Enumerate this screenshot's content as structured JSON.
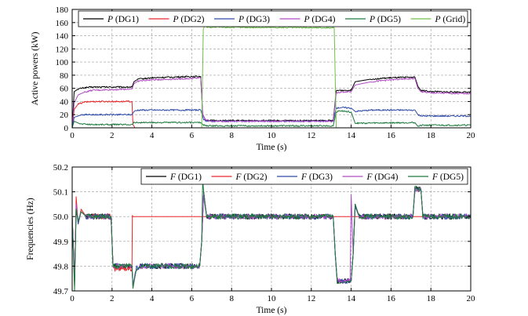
{
  "chart_data": [
    {
      "type": "line",
      "xlabel": "Time (s)",
      "ylabel": "Active powers (kW)",
      "xlim": [
        0,
        20
      ],
      "ylim": [
        0,
        180
      ],
      "xticks": [
        "0",
        "2",
        "4",
        "6",
        "8",
        "10",
        "12",
        "14",
        "16",
        "18",
        "20"
      ],
      "yticks": [
        "0",
        "20",
        "40",
        "60",
        "80",
        "100",
        "120",
        "140",
        "160",
        "180"
      ],
      "grid": "dashed",
      "legend_position": "top, single row",
      "series": [
        {
          "name": "P (DG1)",
          "legend_symbol": "P",
          "legend_suffix": " (DG1)",
          "color": "#000000",
          "x": [
            0,
            0.1,
            0.3,
            0.6,
            1.0,
            2.0,
            3.0,
            3.1,
            3.3,
            4.0,
            5.0,
            6.0,
            6.45,
            6.55,
            6.7,
            7.0,
            13.1,
            13.25,
            13.4,
            13.8,
            14.0,
            14.2,
            15,
            16,
            17.2,
            17.35,
            17.5,
            18,
            20
          ],
          "y": [
            0,
            55,
            59,
            61,
            62,
            62,
            62,
            70,
            74,
            76,
            77,
            78,
            78,
            20,
            12,
            11,
            11,
            56,
            57,
            57,
            57,
            70,
            74,
            76,
            77,
            63,
            57,
            55,
            54
          ]
        },
        {
          "name": "P (DG2)",
          "legend_symbol": "P",
          "legend_suffix": " (DG2)",
          "color": "#e8262a",
          "x": [
            0,
            0.1,
            0.3,
            0.6,
            1.0,
            2.0,
            3.0,
            3.05,
            3.15,
            20
          ],
          "y": [
            0,
            28,
            36,
            39,
            40,
            40,
            40,
            5,
            0,
            0
          ]
        },
        {
          "name": "P (DG3)",
          "legend_symbol": "P",
          "legend_suffix": " (DG3)",
          "color": "#2e49a8",
          "x": [
            0,
            0.1,
            0.5,
            1.0,
            2.0,
            3.0,
            3.1,
            3.3,
            5.0,
            6.45,
            6.6,
            6.8,
            13.1,
            13.25,
            13.5,
            14.0,
            14.2,
            15,
            17.2,
            17.35,
            17.5,
            18,
            20
          ],
          "y": [
            0,
            16,
            20,
            20,
            20,
            20,
            25,
            27,
            27,
            27,
            12,
            10,
            10,
            30,
            31,
            30,
            25,
            27,
            27,
            20,
            18,
            18,
            18
          ]
        },
        {
          "name": "P (DG4)",
          "legend_symbol": "P",
          "legend_suffix": " (DG4)",
          "color": "#b04ac4",
          "x": [
            0,
            0.1,
            0.3,
            0.6,
            1.0,
            2.0,
            3.0,
            3.1,
            3.3,
            4.0,
            5.0,
            6.0,
            6.45,
            6.55,
            6.7,
            7.0,
            13.1,
            13.25,
            13.4,
            13.8,
            14.0,
            14.2,
            15,
            16,
            17.2,
            17.35,
            17.5,
            18,
            20
          ],
          "y": [
            0,
            38,
            50,
            54,
            57,
            58,
            59,
            67,
            71,
            73,
            74,
            75,
            76,
            20,
            12,
            10,
            10,
            52,
            54,
            55,
            55,
            65,
            70,
            73,
            75,
            60,
            55,
            53,
            52
          ]
        },
        {
          "name": "P (DG5)",
          "legend_symbol": "P",
          "legend_suffix": " (DG5)",
          "color": "#1d7a3e",
          "x": [
            0,
            0.1,
            0.4,
            1.0,
            3.0,
            3.1,
            3.3,
            6.45,
            6.6,
            6.8,
            13.1,
            13.25,
            13.4,
            14.0,
            14.2,
            17.2,
            17.35,
            17.5,
            20
          ],
          "y": [
            0,
            10,
            6,
            5,
            5,
            8,
            8,
            8,
            4,
            3,
            3,
            24,
            26,
            24,
            7,
            8,
            2,
            4,
            4
          ]
        },
        {
          "name": "P (Grid)",
          "legend_symbol": "P",
          "legend_suffix": " (Grid)",
          "color": "#6cc04a",
          "x": [
            0,
            6.5,
            6.58,
            6.65,
            6.8,
            13.15,
            13.25,
            20
          ],
          "y": [
            0,
            0,
            150,
            155,
            153,
            152,
            0,
            0
          ]
        }
      ]
    },
    {
      "type": "line",
      "xlabel": "Time (s)",
      "ylabel": "Frequencies (Hz)",
      "xlim": [
        0,
        20
      ],
      "ylim": [
        49.7,
        50.2
      ],
      "xticks": [
        "0",
        "2",
        "4",
        "6",
        "8",
        "10",
        "12",
        "14",
        "16",
        "18",
        "20"
      ],
      "yticks": [
        "49.7",
        "49.8",
        "49.9",
        "50.0",
        "50.1",
        "50.2"
      ],
      "grid": "dashed",
      "legend_position": "top, single row",
      "series": [
        {
          "name": "F (DG1)",
          "legend_symbol": "F",
          "legend_suffix": " (DG1)",
          "color": "#000000",
          "x": [
            0,
            0.12,
            0.2,
            0.3,
            0.45,
            0.7,
            1.0,
            1.95,
            2.05,
            2.15,
            3.0,
            3.05,
            3.2,
            3.4,
            6.4,
            6.5,
            6.6,
            6.75,
            13.1,
            13.2,
            13.3,
            14.0,
            14.1,
            14.2,
            14.4,
            17.1,
            17.2,
            17.5,
            17.6,
            20
          ],
          "y": [
            50.0,
            49.75,
            50.03,
            49.98,
            50.02,
            50.0,
            50.0,
            50.0,
            49.8,
            49.8,
            49.8,
            49.72,
            49.78,
            49.8,
            49.8,
            49.9,
            50.1,
            50.0,
            50.0,
            49.85,
            49.74,
            49.74,
            49.85,
            50.05,
            50.0,
            50.0,
            50.11,
            50.11,
            50.0,
            50.0
          ]
        },
        {
          "name": "F (DG2)",
          "legend_symbol": "F",
          "legend_suffix": " (DG2)",
          "color": "#e8262a",
          "x": [
            0,
            0.12,
            0.2,
            0.3,
            0.45,
            0.7,
            1.0,
            1.95,
            2.05,
            2.15,
            3.0,
            3.02,
            20
          ],
          "y": [
            50.0,
            49.72,
            50.08,
            49.97,
            50.03,
            50.0,
            50.0,
            50.0,
            49.8,
            49.79,
            49.79,
            50.0,
            50.0
          ]
        },
        {
          "name": "F (DG3)",
          "legend_symbol": "F",
          "legend_suffix": " (DG3)",
          "color": "#2e49a8",
          "x": [
            0,
            0.12,
            0.2,
            0.3,
            0.45,
            0.7,
            1.0,
            1.95,
            2.05,
            2.15,
            3.0,
            3.05,
            3.2,
            3.4,
            6.4,
            6.5,
            6.6,
            6.75,
            13.1,
            13.2,
            13.3,
            14.0,
            14.1,
            14.2,
            14.4,
            17.1,
            17.2,
            17.5,
            17.6,
            20
          ],
          "y": [
            50.0,
            49.74,
            50.04,
            49.97,
            50.02,
            50.0,
            50.0,
            50.0,
            49.8,
            49.81,
            49.8,
            49.72,
            49.79,
            49.8,
            49.8,
            49.9,
            50.1,
            50.0,
            50.0,
            49.85,
            49.74,
            49.74,
            49.85,
            50.04,
            50.0,
            50.0,
            50.11,
            50.11,
            50.0,
            50.0
          ]
        },
        {
          "name": "F (DG4)",
          "legend_symbol": "F",
          "legend_suffix": " (DG4)",
          "color": "#b04ac4",
          "x": [
            0,
            0.12,
            0.2,
            0.3,
            0.45,
            0.7,
            1.0,
            1.95,
            2.05,
            2.15,
            3.0,
            3.05,
            3.2,
            3.4,
            6.4,
            6.5,
            6.6,
            6.75,
            13.1,
            13.2,
            13.3,
            13.95,
            14.0,
            14.1,
            14.2,
            14.4,
            17.1,
            17.2,
            17.5,
            17.6,
            20
          ],
          "y": [
            50.0,
            49.73,
            50.05,
            49.98,
            50.02,
            50.0,
            50.0,
            50.0,
            49.8,
            49.8,
            49.8,
            49.72,
            49.78,
            49.8,
            49.8,
            49.9,
            50.1,
            50.0,
            50.0,
            49.85,
            49.74,
            49.74,
            50.09,
            49.85,
            50.05,
            50.0,
            50.0,
            50.11,
            50.11,
            50.0,
            50.0
          ]
        },
        {
          "name": "F (DG5)",
          "legend_symbol": "F",
          "legend_suffix": " (DG5)",
          "color": "#1d7a3e",
          "x": [
            0,
            0.12,
            0.2,
            0.3,
            0.45,
            0.7,
            1.0,
            1.95,
            2.05,
            2.15,
            3.0,
            3.05,
            3.2,
            3.4,
            6.4,
            6.5,
            6.55,
            6.65,
            6.75,
            13.1,
            13.2,
            13.3,
            14.0,
            14.1,
            14.2,
            14.4,
            17.1,
            17.2,
            17.5,
            17.6,
            20
          ],
          "y": [
            50.0,
            49.7,
            50.03,
            49.98,
            50.02,
            50.0,
            50.0,
            50.0,
            49.8,
            49.8,
            49.8,
            49.71,
            49.78,
            49.8,
            49.8,
            49.9,
            50.15,
            50.05,
            50.0,
            50.0,
            49.85,
            49.73,
            49.74,
            49.85,
            50.05,
            50.0,
            50.0,
            50.12,
            50.11,
            50.0,
            50.0
          ]
        }
      ]
    }
  ]
}
